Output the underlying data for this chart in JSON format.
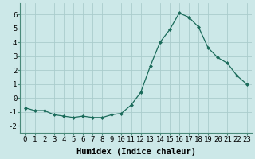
{
  "x": [
    0,
    1,
    2,
    3,
    4,
    5,
    6,
    7,
    8,
    9,
    10,
    11,
    12,
    13,
    14,
    15,
    16,
    17,
    18,
    19,
    20,
    21,
    22,
    23
  ],
  "y": [
    -0.7,
    -0.9,
    -0.9,
    -1.2,
    -1.3,
    -1.4,
    -1.3,
    -1.4,
    -1.4,
    -1.2,
    -1.1,
    -0.5,
    0.4,
    2.3,
    4.0,
    4.9,
    6.1,
    5.8,
    5.1,
    3.6,
    2.9,
    2.5,
    1.6,
    1.0
  ],
  "line_color": "#1a6b5a",
  "marker": "D",
  "marker_size": 2.0,
  "bg_color": "#cce8e8",
  "grid_color": "#aacccc",
  "xlabel": "Humidex (Indice chaleur)",
  "xlim": [
    -0.5,
    23.5
  ],
  "ylim": [
    -2.5,
    6.8
  ],
  "xtick_labels": [
    "0",
    "1",
    "2",
    "3",
    "4",
    "5",
    "6",
    "7",
    "8",
    "9",
    "10",
    "11",
    "12",
    "13",
    "14",
    "15",
    "16",
    "17",
    "18",
    "19",
    "20",
    "21",
    "22",
    "23"
  ],
  "yticks": [
    -2,
    -1,
    0,
    1,
    2,
    3,
    4,
    5,
    6
  ],
  "xlabel_fontsize": 7.5,
  "tick_fontsize": 6.5
}
